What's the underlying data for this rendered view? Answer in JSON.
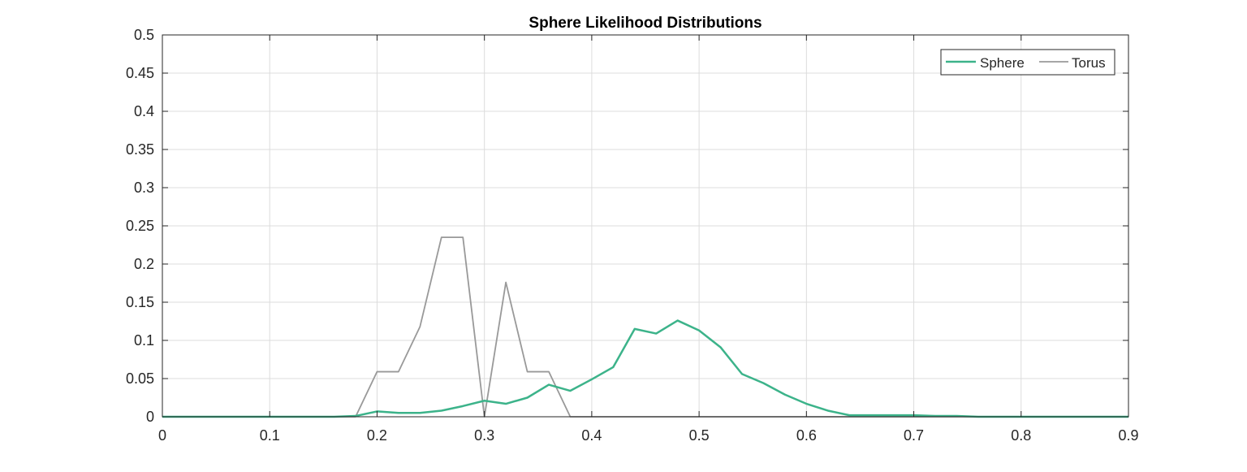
{
  "chart_data": {
    "type": "line",
    "title": "Sphere Likelihood Distributions",
    "xlabel": "",
    "ylabel": "",
    "xlim": [
      0,
      0.9
    ],
    "ylim": [
      0,
      0.5
    ],
    "xticks": [
      0,
      0.1,
      0.2,
      0.3,
      0.4,
      0.5,
      0.6,
      0.7,
      0.8,
      0.9
    ],
    "xtick_labels": [
      "0",
      "0.1",
      "0.2",
      "0.3",
      "0.4",
      "0.5",
      "0.6",
      "0.7",
      "0.8",
      "0.9"
    ],
    "yticks": [
      0,
      0.05,
      0.1,
      0.15,
      0.2,
      0.25,
      0.3,
      0.35,
      0.4,
      0.45,
      0.5
    ],
    "ytick_labels": [
      "0",
      "0.05",
      "0.1",
      "0.15",
      "0.2",
      "0.25",
      "0.3",
      "0.35",
      "0.4",
      "0.45",
      "0.5"
    ],
    "grid": true,
    "legend_position": "top-right",
    "x": [
      0,
      0.02,
      0.04,
      0.06,
      0.08,
      0.1,
      0.12,
      0.14,
      0.16,
      0.18,
      0.2,
      0.22,
      0.24,
      0.26,
      0.28,
      0.3,
      0.32,
      0.34,
      0.36,
      0.38,
      0.4,
      0.42,
      0.44,
      0.46,
      0.48,
      0.5,
      0.52,
      0.54,
      0.56,
      0.58,
      0.6,
      0.62,
      0.64,
      0.66,
      0.68,
      0.7,
      0.72,
      0.74,
      0.76,
      0.78,
      0.8,
      0.82,
      0.84,
      0.86,
      0.88,
      0.9
    ],
    "series": [
      {
        "name": "Sphere",
        "color": "#3cb38a",
        "values": [
          0,
          0,
          0,
          0,
          0,
          0,
          0,
          0,
          0,
          0.001,
          0.007,
          0.005,
          0.005,
          0.008,
          0.014,
          0.021,
          0.017,
          0.025,
          0.042,
          0.034,
          0.049,
          0.065,
          0.115,
          0.109,
          0.126,
          0.113,
          0.091,
          0.056,
          0.044,
          0.029,
          0.017,
          0.008,
          0.002,
          0.002,
          0.002,
          0.002,
          0.001,
          0.001,
          0,
          0,
          0,
          0,
          0,
          0,
          0,
          0
        ]
      },
      {
        "name": "Torus",
        "color": "#999999",
        "values": [
          0,
          0,
          0,
          0,
          0,
          0,
          0,
          0,
          0,
          0,
          0.059,
          0.059,
          0.118,
          0.235,
          0.235,
          0,
          0.176,
          0.059,
          0.059,
          0,
          0,
          0,
          0,
          0,
          0,
          0,
          0,
          0,
          0,
          0,
          0,
          0,
          0,
          0,
          0,
          0,
          0,
          0,
          0,
          0,
          0,
          0,
          0,
          0,
          0,
          0
        ]
      }
    ]
  }
}
